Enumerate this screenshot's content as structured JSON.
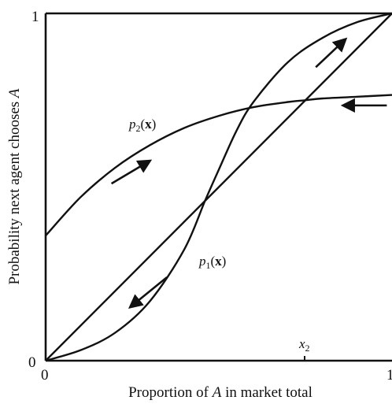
{
  "chart_data": {
    "type": "line",
    "title": "",
    "xlabel": "Proportion of A in market total",
    "ylabel": "Probability next agent chooses A",
    "xlim": [
      0,
      1
    ],
    "ylim": [
      0,
      1
    ],
    "x_tick_labels": [
      "0",
      "1"
    ],
    "y_tick_labels": [
      "0",
      "1"
    ],
    "marked_points": [
      {
        "label": "x2",
        "x": 0.75
      }
    ],
    "series": [
      {
        "name": "p2(x)",
        "x": [
          0,
          0.1,
          0.2,
          0.3,
          0.4,
          0.5,
          0.6,
          0.7,
          0.75,
          0.8,
          0.9,
          1.0
        ],
        "y": [
          0.36,
          0.47,
          0.555,
          0.62,
          0.67,
          0.705,
          0.73,
          0.745,
          0.75,
          0.755,
          0.76,
          0.765
        ]
      },
      {
        "name": "p1(x)",
        "x": [
          0,
          0.1,
          0.2,
          0.3,
          0.4,
          0.46,
          0.5,
          0.55,
          0.6,
          0.7,
          0.8,
          0.9,
          1.0
        ],
        "y": [
          0,
          0.03,
          0.08,
          0.17,
          0.32,
          0.46,
          0.55,
          0.66,
          0.745,
          0.86,
          0.93,
          0.975,
          1.0
        ]
      },
      {
        "name": "",
        "x": [
          0,
          1
        ],
        "y": [
          0,
          1
        ]
      }
    ],
    "arrows": [
      {
        "x1": 0.19,
        "y1": 0.51,
        "x2": 0.3,
        "y2": 0.575
      },
      {
        "x1": 0.78,
        "y1": 0.845,
        "x2": 0.865,
        "y2": 0.925
      },
      {
        "x1": 0.985,
        "y1": 0.735,
        "x2": 0.86,
        "y2": 0.735
      },
      {
        "x1": 0.35,
        "y1": 0.24,
        "x2": 0.245,
        "y2": 0.155
      }
    ]
  }
}
